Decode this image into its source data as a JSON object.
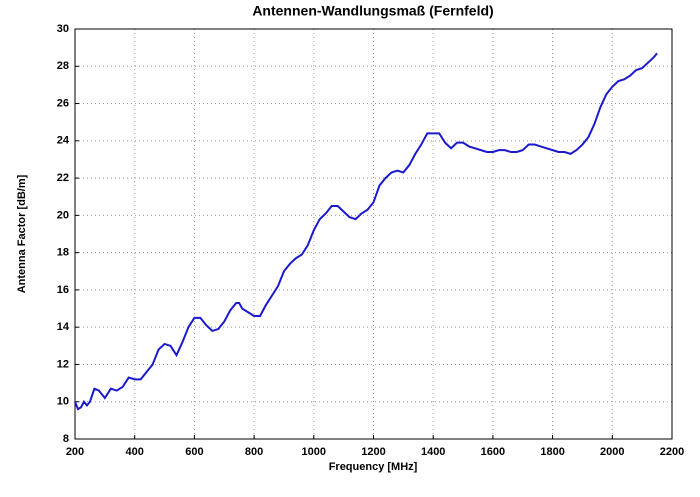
{
  "chart_data": {
    "type": "line",
    "title": "Antennen-Wandlungsmaß (Fernfeld)",
    "x_label": "Frequency [MHz]",
    "y_label": "Antenna Factor [dB/m]",
    "x": [
      200,
      210,
      220,
      230,
      240,
      250,
      265,
      280,
      300,
      320,
      340,
      360,
      380,
      400,
      420,
      440,
      460,
      480,
      500,
      520,
      540,
      560,
      580,
      600,
      620,
      640,
      660,
      680,
      700,
      720,
      740,
      750,
      760,
      780,
      800,
      820,
      840,
      860,
      880,
      900,
      920,
      940,
      960,
      980,
      1000,
      1020,
      1040,
      1060,
      1080,
      1100,
      1120,
      1140,
      1160,
      1180,
      1200,
      1220,
      1240,
      1260,
      1280,
      1300,
      1320,
      1340,
      1360,
      1380,
      1400,
      1420,
      1440,
      1460,
      1480,
      1500,
      1520,
      1540,
      1560,
      1580,
      1600,
      1620,
      1640,
      1660,
      1680,
      1700,
      1720,
      1740,
      1760,
      1780,
      1800,
      1820,
      1840,
      1860,
      1880,
      1900,
      1920,
      1940,
      1960,
      1980,
      2000,
      2020,
      2040,
      2060,
      2080,
      2100,
      2120,
      2140,
      2150
    ],
    "series": [
      {
        "name": "Antenna Factor",
        "color": "#1a1acc",
        "values": [
          10.0,
          9.6,
          9.7,
          10.0,
          9.8,
          10.0,
          10.7,
          10.6,
          10.2,
          10.7,
          10.6,
          10.8,
          11.3,
          11.2,
          11.2,
          11.6,
          12.0,
          12.8,
          13.1,
          13.0,
          12.5,
          13.2,
          14.0,
          14.5,
          14.5,
          14.1,
          13.8,
          13.9,
          14.3,
          14.9,
          15.3,
          15.3,
          15.0,
          14.8,
          14.6,
          14.6,
          15.2,
          15.7,
          16.2,
          17.0,
          17.4,
          17.7,
          17.9,
          18.4,
          19.2,
          19.8,
          20.1,
          20.5,
          20.5,
          20.2,
          19.9,
          19.8,
          20.1,
          20.3,
          20.7,
          21.6,
          22.0,
          22.3,
          22.4,
          22.3,
          22.7,
          23.3,
          23.8,
          24.4,
          24.4,
          24.4,
          23.9,
          23.6,
          23.9,
          23.9,
          23.7,
          23.6,
          23.5,
          23.4,
          23.4,
          23.5,
          23.5,
          23.4,
          23.4,
          23.5,
          23.8,
          23.8,
          23.7,
          23.6,
          23.5,
          23.4,
          23.4,
          23.3,
          23.5,
          23.8,
          24.2,
          24.9,
          25.8,
          26.5,
          26.9,
          27.2,
          27.3,
          27.5,
          27.8,
          27.9,
          28.2,
          28.5,
          28.7
        ]
      }
    ],
    "xlim": [
      200,
      2200
    ],
    "xticks": [
      200,
      400,
      600,
      800,
      1000,
      1200,
      1400,
      1600,
      1800,
      2000,
      2200
    ],
    "ylim": [
      8,
      30
    ],
    "yticks": [
      8,
      10,
      12,
      14,
      16,
      18,
      20,
      22,
      24,
      26,
      28,
      30
    ],
    "grid": true
  }
}
